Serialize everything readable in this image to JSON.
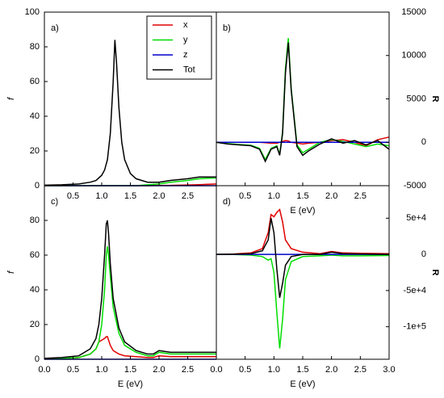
{
  "chart_data": [
    {
      "type": "line",
      "panel_label": "a)",
      "ylabel": "f",
      "yaxis_side": "left",
      "legend": "top-right",
      "x": [
        0,
        0.3,
        0.6,
        0.8,
        0.9,
        1.0,
        1.05,
        1.1,
        1.15,
        1.2,
        1.23,
        1.26,
        1.3,
        1.35,
        1.4,
        1.5,
        1.6,
        1.8,
        2.0,
        2.2,
        2.5,
        2.7,
        3.0
      ],
      "xlim": [
        0,
        3
      ],
      "xticks": [
        0.5,
        {
          "value": 1,
          "label": "1.0"
        },
        1.5,
        {
          "value": 2,
          "label": "2.0"
        },
        2.5
      ],
      "ylim": [
        0,
        100
      ],
      "yticks": [
        0,
        20,
        40,
        60,
        80,
        100
      ],
      "series": [
        {
          "name": "x",
          "color": "#e00000",
          "values": [
            0,
            0,
            0,
            0,
            0,
            0,
            0,
            0,
            0,
            0,
            0,
            0,
            0,
            0,
            0,
            0,
            0,
            0,
            0.1,
            0.2,
            0.4,
            0.6,
            1
          ]
        },
        {
          "name": "y",
          "color": "#00dd00",
          "values": [
            0,
            0,
            0,
            0,
            0,
            0,
            0,
            0,
            0,
            0,
            0,
            0,
            0,
            0,
            0,
            0,
            0,
            0.5,
            1,
            2,
            3,
            4,
            4.5
          ]
        },
        {
          "name": "z",
          "color": "#0000cc",
          "values": [
            0,
            0,
            0,
            0,
            0,
            0,
            0,
            0,
            0,
            0,
            0,
            0,
            0,
            0,
            0,
            0,
            0,
            0,
            0,
            0,
            0,
            0,
            0
          ]
        },
        {
          "name": "Tot",
          "color": "#000000",
          "values": [
            0.3,
            0.5,
            1,
            2,
            3,
            6,
            9,
            15,
            30,
            60,
            84,
            70,
            45,
            25,
            15,
            7,
            4,
            2,
            2,
            3,
            4,
            5,
            5
          ]
        }
      ]
    },
    {
      "type": "line",
      "panel_label": "b)",
      "xlabel": "E (eV)",
      "ylabel": "R",
      "yaxis_side": "right",
      "x": [
        0,
        0.2,
        0.4,
        0.6,
        0.75,
        0.85,
        0.95,
        1.05,
        1.1,
        1.15,
        1.2,
        1.25,
        1.3,
        1.4,
        1.5,
        1.6,
        1.8,
        2.0,
        2.2,
        2.4,
        2.6,
        2.8,
        3.0
      ],
      "xlim": [
        0,
        3
      ],
      "xticks": [
        0.5,
        {
          "value": 1,
          "label": "1.0"
        },
        1.5,
        {
          "value": 2,
          "label": "2.0"
        },
        2.5
      ],
      "ylim": [
        -5000,
        15000
      ],
      "yticks": [
        -5000,
        0,
        5000,
        10000,
        15000
      ],
      "series": [
        {
          "color": "#e00000",
          "values": [
            0,
            0,
            0,
            0,
            0,
            -50,
            -100,
            -100,
            0,
            100,
            200,
            150,
            0,
            -100,
            -200,
            -100,
            0,
            200,
            300,
            0,
            -400,
            300,
            600
          ]
        },
        {
          "color": "#00dd00",
          "values": [
            0,
            -150,
            -250,
            -350,
            -700,
            -2000,
            -700,
            -400,
            -1400,
            1200,
            8500,
            12000,
            6200,
            -300,
            -1200,
            -800,
            0,
            300,
            100,
            -200,
            -500,
            -200,
            -400
          ]
        },
        {
          "color": "#0000cc",
          "values": [
            0,
            0,
            0,
            0,
            0,
            0,
            0,
            0,
            0,
            0,
            0,
            0,
            0,
            0,
            0,
            0,
            0,
            0,
            0,
            0,
            0,
            0,
            0
          ]
        },
        {
          "color": "#000000",
          "values": [
            0,
            -200,
            -300,
            -400,
            -800,
            -2200,
            -800,
            -500,
            -1500,
            1000,
            8000,
            11500,
            6000,
            -500,
            -1500,
            -1000,
            -200,
            400,
            -100,
            200,
            -300,
            200,
            -800
          ]
        }
      ]
    },
    {
      "type": "line",
      "panel_label": "c)",
      "xlabel": "E (eV)",
      "ylabel": "f",
      "yaxis_side": "left",
      "x": [
        0,
        0.3,
        0.6,
        0.8,
        0.9,
        0.95,
        1.0,
        1.05,
        1.08,
        1.1,
        1.12,
        1.15,
        1.2,
        1.3,
        1.4,
        1.6,
        1.8,
        1.9,
        2.0,
        2.2,
        2.5,
        3.0
      ],
      "xlim": [
        0,
        3
      ],
      "xticks": [
        {
          "value": 0,
          "label": "0.0"
        },
        0.5,
        {
          "value": 1,
          "label": "1.0"
        },
        1.5,
        {
          "value": 2,
          "label": "2.0"
        },
        2.5
      ],
      "ylim": [
        0,
        100
      ],
      "yticks": [
        0,
        20,
        40,
        60,
        80
      ],
      "series": [
        {
          "color": "#e00000",
          "values": [
            0.2,
            0.5,
            1,
            3,
            6,
            10,
            11,
            12,
            13,
            13,
            11,
            8,
            5,
            3,
            2,
            1.5,
            1,
            1,
            2,
            1.5,
            1.5,
            1.5
          ]
        },
        {
          "color": "#00dd00",
          "values": [
            0.2,
            0.5,
            1,
            3,
            6,
            10,
            20,
            40,
            60,
            65,
            60,
            48,
            30,
            15,
            8,
            4,
            2,
            2,
            4,
            3,
            3,
            3
          ]
        },
        {
          "color": "#0000cc",
          "values": [
            0,
            0,
            0,
            0,
            0,
            0,
            0,
            0,
            0,
            0,
            0,
            0,
            0,
            0,
            0,
            0,
            0,
            0,
            0,
            0,
            0,
            0
          ]
        },
        {
          "color": "#000000",
          "values": [
            0.5,
            1,
            2,
            6,
            12,
            20,
            35,
            60,
            78,
            80,
            72,
            55,
            35,
            18,
            10,
            5,
            3,
            3,
            5,
            4,
            4,
            4
          ]
        }
      ]
    },
    {
      "type": "line",
      "panel_label": "d)",
      "xlabel": "E (eV)",
      "ylabel": "R",
      "yaxis_side": "right",
      "x": [
        0,
        0.3,
        0.6,
        0.8,
        0.9,
        0.95,
        1.0,
        1.05,
        1.1,
        1.15,
        1.2,
        1.3,
        1.5,
        1.8,
        2.0,
        2.2,
        2.5,
        3.0
      ],
      "xlim": [
        0,
        3
      ],
      "xticks": [
        {
          "value": 0,
          "label": "0.0"
        },
        0.5,
        {
          "value": 1,
          "label": "1.0"
        },
        1.5,
        {
          "value": 2,
          "label": "2.0"
        },
        2.5,
        {
          "value": 3,
          "label": "3.0"
        }
      ],
      "ylim": [
        -145000,
        95000
      ],
      "yticks": [
        {
          "value": -100000,
          "label": "-1e+5"
        },
        {
          "value": -50000,
          "label": "-5e+4"
        },
        0,
        {
          "value": 50000,
          "label": "5e+4"
        }
      ],
      "series": [
        {
          "color": "#e00000",
          "values": [
            0,
            500,
            2000,
            8000,
            30000,
            55000,
            52000,
            58000,
            62000,
            45000,
            20000,
            8000,
            3000,
            1000,
            4000,
            2000,
            1500,
            1000
          ]
        },
        {
          "color": "#00dd00",
          "values": [
            0,
            -200,
            -1000,
            -3000,
            -8000,
            -6000,
            -25000,
            -80000,
            -130000,
            -90000,
            -35000,
            -10000,
            -3000,
            -2000,
            -1000,
            -2000,
            -2000,
            -1500
          ]
        },
        {
          "color": "#0000cc",
          "values": [
            0,
            0,
            0,
            0,
            0,
            0,
            0,
            0,
            0,
            0,
            0,
            0,
            0,
            0,
            0,
            0,
            0,
            0
          ]
        },
        {
          "color": "#000000",
          "values": [
            0,
            300,
            1000,
            5000,
            20000,
            50000,
            30000,
            -20000,
            -60000,
            -40000,
            -15000,
            -3000,
            0,
            0,
            3000,
            1000,
            500,
            0
          ]
        }
      ]
    }
  ]
}
